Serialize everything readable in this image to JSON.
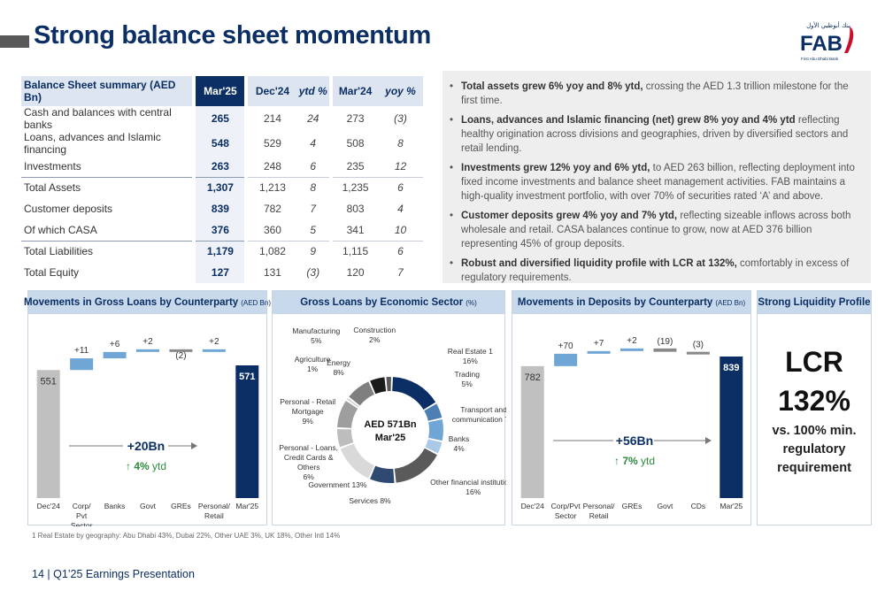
{
  "title": "Strong balance sheet momentum",
  "logo": {
    "text": "FAB",
    "arabic": "بنك أبوظبي الأول",
    "tagline": "First Abu Dhabi Bank",
    "color": "#0b2f64",
    "accent": "#c8102e"
  },
  "summary_table": {
    "headers": [
      "Balance Sheet summary (AED Bn)",
      "Mar'25",
      "Dec'24",
      "ytd %",
      "Mar'24",
      "yoy %"
    ],
    "rows": [
      {
        "label": "Cash and balances with central banks",
        "mar25": "265",
        "dec24": "214",
        "ytd": "24",
        "mar24": "273",
        "yoy": "(3)"
      },
      {
        "label": "Loans, advances and Islamic financing",
        "mar25": "548",
        "dec24": "529",
        "ytd": "4",
        "mar24": "508",
        "yoy": "8"
      },
      {
        "label": "Investments",
        "mar25": "263",
        "dec24": "248",
        "ytd": "6",
        "mar24": "235",
        "yoy": "12"
      },
      {
        "label": "Total Assets",
        "mar25": "1,307",
        "dec24": "1,213",
        "ytd": "8",
        "mar24": "1,235",
        "yoy": "6"
      },
      {
        "label": "Customer deposits",
        "mar25": "839",
        "dec24": "782",
        "ytd": "7",
        "mar24": "803",
        "yoy": "4"
      },
      {
        "label": "Of which CASA",
        "mar25": "376",
        "dec24": "360",
        "ytd": "5",
        "mar24": "341",
        "yoy": "10"
      },
      {
        "label": "Total Liabilities",
        "mar25": "1,179",
        "dec24": "1,082",
        "ytd": "9",
        "mar24": "1,115",
        "yoy": "6"
      },
      {
        "label": "Total Equity",
        "mar25": "127",
        "dec24": "131",
        "ytd": "(3)",
        "mar24": "120",
        "yoy": "7"
      }
    ]
  },
  "bullets": [
    {
      "bold": "Total assets grew 6% yoy and 8% ytd,",
      "text": " crossing the AED 1.3 trillion milestone for the first time."
    },
    {
      "bold": "Loans, advances and Islamic financing (net) grew 8% yoy and 4% ytd",
      "text": " reflecting healthy origination across divisions and geographies, driven by diversified sectors and retail lending."
    },
    {
      "bold": "Investments grew 12% yoy and 6% ytd,",
      "text": " to AED 263 billion, reflecting deployment into fixed income investments and balance sheet management activities. FAB maintains a high-quality investment portfolio, with over 70% of securities rated ‘A’ and above."
    },
    {
      "bold": "Customer deposits grew 4% yoy and 7% ytd,",
      "text": " reflecting sizeable inflows across both wholesale and retail. CASA balances continue to grow, now at AED 376 billion representing 45% of group deposits."
    },
    {
      "bold": "Robust and diversified liquidity profile with LCR at 132%,",
      "text": " comfortably in excess of regulatory requirements."
    }
  ],
  "panels": {
    "loans": {
      "title": "Movements in Gross Loans by Counterparty",
      "unit": "(AED Bn)"
    },
    "sector": {
      "title": "Gross Loans by Economic Sector",
      "unit": "(%)"
    },
    "deposits": {
      "title": "Movements in Deposits by Counterparty",
      "unit": "(AED Bn)"
    },
    "liquidity": {
      "title": "Strong Liquidity Profile",
      "lcr_label": "LCR",
      "lcr_value": "132%",
      "note": "vs. 100% min. regulatory requirement"
    }
  },
  "colors": {
    "navy": "#0b2f64",
    "grey_bar": "#c0c0c0",
    "green": "#2e8b3e",
    "light_blue": "#6fa6d6"
  },
  "chart_data": [
    {
      "type": "bar",
      "subtype": "waterfall",
      "name": "loans",
      "categories": [
        "Dec'24",
        "Corp/ Pvt Sector",
        "Banks",
        "Govt",
        "GREs",
        "Personal/ Retail",
        "Mar'25"
      ],
      "values": [
        551,
        11,
        6,
        2,
        -2,
        2,
        571
      ],
      "labels": [
        "551",
        "+11",
        "+6",
        "+2",
        "(2)",
        "+2",
        "571"
      ],
      "annotation": {
        "change": "+20Bn",
        "growth": "4%",
        "growth_suffix": "ytd"
      }
    },
    {
      "type": "pie",
      "subtype": "donut",
      "name": "sector",
      "center_text": [
        "AED 571Bn",
        "Mar'25"
      ],
      "slices": [
        {
          "name": "Real Estate",
          "sup": "1",
          "value": 16,
          "label": "16%",
          "color": "#0b2f64"
        },
        {
          "name": "Trading",
          "value": 5,
          "label": "5%",
          "color": "#4d7fb4"
        },
        {
          "name": "Transport and communication",
          "value": 7,
          "label": "7%",
          "color": "#6fa6d6"
        },
        {
          "name": "Banks",
          "value": 4,
          "label": "4%",
          "color": "#a9c9e6"
        },
        {
          "name": "Other financial institutions",
          "value": 16,
          "label": "16%",
          "color": "#5a5a5a"
        },
        {
          "name": "Services",
          "value": 8,
          "label": "8%",
          "color": "#2e4a70"
        },
        {
          "name": "Government",
          "value": 13,
          "label": "13%",
          "color": "#d9d9d9"
        },
        {
          "name": "Personal - Loans, Credit Cards & Others",
          "value": 6,
          "label": "6%",
          "color": "#bdbdbd"
        },
        {
          "name": "Personal - Retail Mortgage",
          "value": 9,
          "label": "9%",
          "color": "#9e9e9e"
        },
        {
          "name": "Agriculture",
          "value": 1,
          "label": "1%",
          "color": "#cfcfcf"
        },
        {
          "name": "Energy",
          "value": 8,
          "label": "8%",
          "color": "#7f7f7f"
        },
        {
          "name": "Manufacturing",
          "value": 5,
          "label": "5%",
          "color": "#1a1a1a"
        },
        {
          "name": "Construction",
          "value": 2,
          "label": "2%",
          "color": "#595959"
        }
      ]
    },
    {
      "type": "bar",
      "subtype": "waterfall",
      "name": "deposits",
      "categories": [
        "Dec'24",
        "Corp/Pvt Sector",
        "Personal/ Retail",
        "GREs",
        "Govt",
        "CDs",
        "Mar'25"
      ],
      "values": [
        782,
        70,
        7,
        2,
        -19,
        -3,
        839
      ],
      "labels": [
        "782",
        "+70",
        "+7",
        "+2",
        "(19)",
        "(3)",
        "839"
      ],
      "annotation": {
        "change": "+56Bn",
        "growth": "7%",
        "growth_suffix": "ytd"
      }
    }
  ],
  "footnote": "1 Real Estate by geography: Abu Dhabi 43%, Dubai 22%, Other UAE 3%, UK 18%, Other Intl 14%",
  "footer": "14 | Q1’25 Earnings Presentation"
}
